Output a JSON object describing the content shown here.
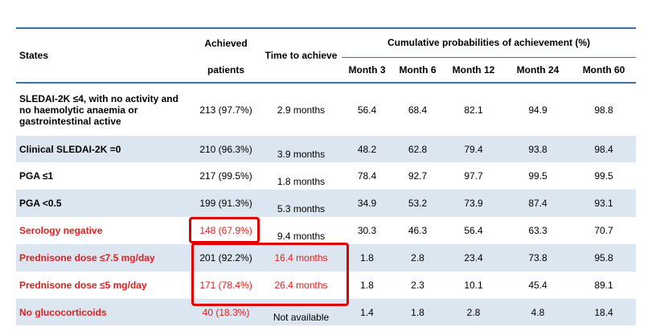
{
  "header": {
    "states": "States",
    "achieved_top": "Achieved",
    "achieved_bottom": "patients",
    "time": "Time to achieve",
    "cumulative": "Cumulative probabilities of achievement (%)",
    "months": [
      "Month 3",
      "Month 6",
      "Month 12",
      "Month 24",
      "Month 60"
    ]
  },
  "rows": [
    {
      "state": "SLEDAI-2K ≤4, with no activity and no haemolytic anaemia or gastrointestinal active",
      "achieved": "213 (97.7%)",
      "time": "2.9 months",
      "values": [
        "56.4",
        "68.4",
        "82.1",
        "94.9",
        "98.8"
      ]
    },
    {
      "state": "Clinical SLEDAI-2K =0",
      "achieved": "210 (96.3%)",
      "time": "3.9 months",
      "values": [
        "48.2",
        "62.8",
        "79.4",
        "93.8",
        "98.4"
      ]
    },
    {
      "state": "PGA ≤1",
      "achieved": "217 (99.5%)",
      "time": "1.8 months",
      "values": [
        "78.4",
        "92.7",
        "97.7",
        "99.5",
        "99.5"
      ]
    },
    {
      "state": "PGA <0.5",
      "achieved": "199 (91.3%)",
      "time": "5.3 months",
      "values": [
        "34.9",
        "53.2",
        "73.9",
        "87.4",
        "93.1"
      ]
    },
    {
      "state": "Serology negative",
      "achieved": "148 (67.9%)",
      "time": "9.4 months",
      "values": [
        "30.3",
        "46.3",
        "56.4",
        "63.3",
        "70.7"
      ]
    },
    {
      "state": "Prednisone dose ≤7.5 mg/day",
      "achieved": "201 (92.2%)",
      "time": "16.4 months",
      "values": [
        "1.8",
        "2.8",
        "23.4",
        "73.8",
        "95.8"
      ]
    },
    {
      "state": "Prednisone dose ≤5 mg/day",
      "achieved": "171 (78.4%)",
      "time": "26.4 months",
      "values": [
        "1.8",
        "2.3",
        "10.1",
        "45.4",
        "89.1"
      ]
    },
    {
      "state": "No glucocorticoids",
      "achieved": "40 (18.3%)",
      "time": "Not available",
      "values": [
        "1.4",
        "1.8",
        "2.8",
        "4.8",
        "18.4"
      ]
    }
  ],
  "colors": {
    "accent": "#3e6fa5",
    "shade": "#dce6f1",
    "highlight": "#e00000"
  }
}
